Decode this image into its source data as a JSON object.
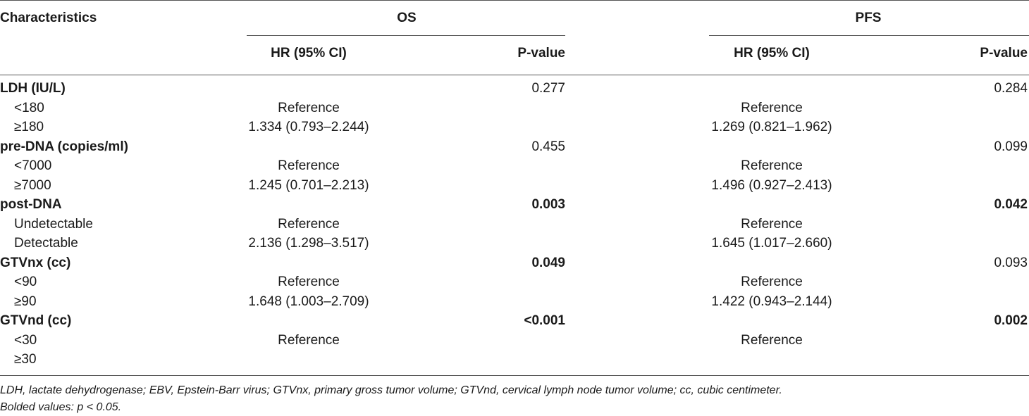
{
  "header": {
    "characteristics": "Characteristics",
    "os": "OS",
    "pfs": "PFS",
    "os_hr": "HR (95% CI)",
    "os_p": "P-value",
    "pfs_hr": "HR (95% CI)",
    "pfs_p": "P-value"
  },
  "rows": [
    {
      "label": "LDH (IU/L)",
      "group": true,
      "os_hr": "",
      "os_p": "0.277",
      "os_p_bold": false,
      "pfs_hr": "",
      "pfs_p": "0.284",
      "pfs_p_bold": false
    },
    {
      "label": "<180",
      "group": false,
      "os_hr": "Reference",
      "os_p": "",
      "pfs_hr": "Reference",
      "pfs_p": ""
    },
    {
      "label": "≥180",
      "group": false,
      "os_hr": "1.334 (0.793–2.244)",
      "os_p": "",
      "pfs_hr": "1.269 (0.821–1.962)",
      "pfs_p": ""
    },
    {
      "label": "pre-DNA (copies/ml)",
      "group": true,
      "os_hr": "",
      "os_p": "0.455",
      "os_p_bold": false,
      "pfs_hr": "",
      "pfs_p": "0.099",
      "pfs_p_bold": false
    },
    {
      "label": "<7000",
      "group": false,
      "os_hr": "Reference",
      "os_p": "",
      "pfs_hr": "Reference",
      "pfs_p": ""
    },
    {
      "label": "≥7000",
      "group": false,
      "os_hr": "1.245 (0.701–2.213)",
      "os_p": "",
      "pfs_hr": "1.496 (0.927–2.413)",
      "pfs_p": ""
    },
    {
      "label": "post-DNA",
      "group": true,
      "os_hr": "",
      "os_p": "0.003",
      "os_p_bold": true,
      "pfs_hr": "",
      "pfs_p": "0.042",
      "pfs_p_bold": true
    },
    {
      "label": "Undetectable",
      "group": false,
      "os_hr": "Reference",
      "os_p": "",
      "pfs_hr": "Reference",
      "pfs_p": ""
    },
    {
      "label": "Detectable",
      "group": false,
      "os_hr": "2.136 (1.298–3.517)",
      "os_p": "",
      "pfs_hr": "1.645 (1.017–2.660)",
      "pfs_p": ""
    },
    {
      "label": "GTVnx (cc)",
      "group": true,
      "os_hr": "",
      "os_p": "0.049",
      "os_p_bold": true,
      "pfs_hr": "",
      "pfs_p": "0.093",
      "pfs_p_bold": false
    },
    {
      "label": "<90",
      "group": false,
      "os_hr": "Reference",
      "os_p": "",
      "pfs_hr": "Reference",
      "pfs_p": ""
    },
    {
      "label": "≥90",
      "group": false,
      "os_hr": "1.648 (1.003–2.709)",
      "os_p": "",
      "pfs_hr": "1.422 (0.943–2.144)",
      "pfs_p": ""
    },
    {
      "label": "GTVnd (cc)",
      "group": true,
      "os_hr": "",
      "os_p": "<0.001",
      "os_p_bold": true,
      "pfs_hr": "",
      "pfs_p": "0.002",
      "pfs_p_bold": true
    },
    {
      "label": "<30",
      "group": false,
      "os_hr": "Reference",
      "os_p": "",
      "pfs_hr": "Reference",
      "pfs_p": ""
    },
    {
      "label": "≥30",
      "group": false,
      "os_hr": "",
      "os_p": "",
      "pfs_hr": "",
      "pfs_p": ""
    }
  ],
  "footnote": {
    "abbreviations": "LDH, lactate dehydrogenase; EBV, Epstein-Barr virus; GTVnx, primary gross tumor volume; GTVnd, cervical lymph node tumor volume; cc, cubic centimeter.",
    "bold_note": "Bolded values: p < 0.05."
  }
}
